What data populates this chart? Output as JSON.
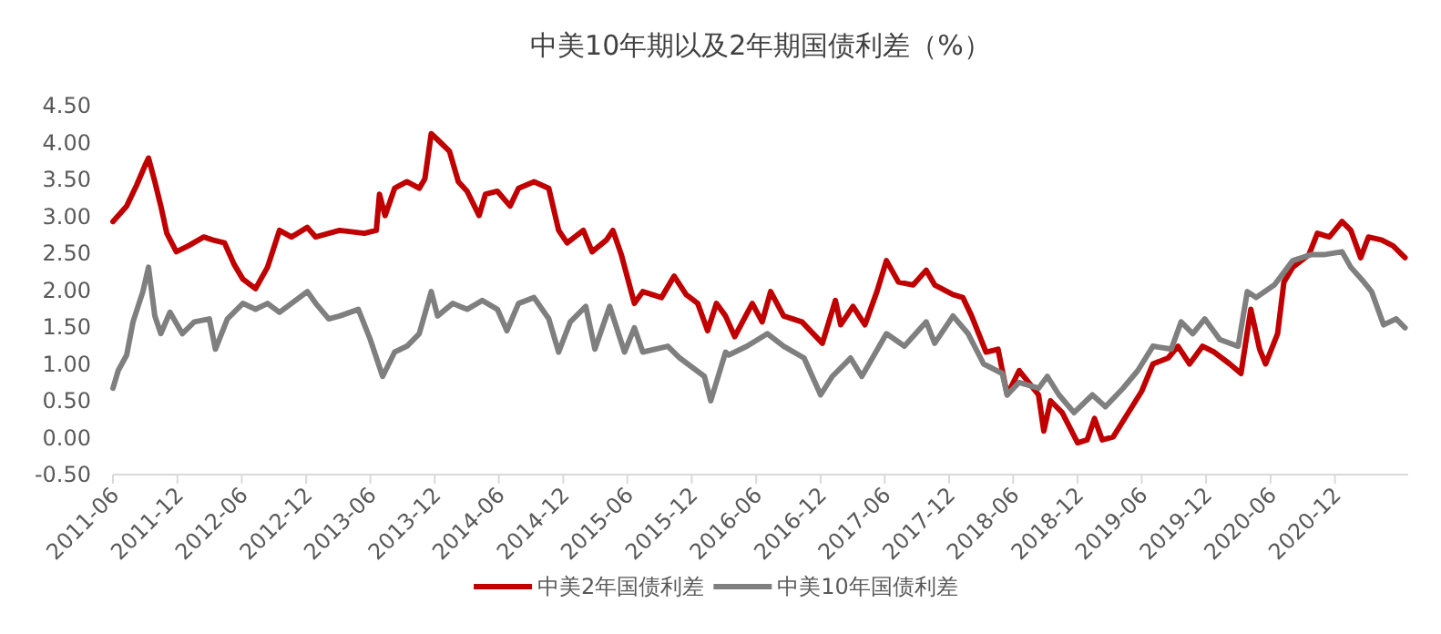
{
  "chart_data": {
    "type": "line",
    "title": "中美10年期以及2年期国债利差（%）",
    "xlim": [
      "2011-06",
      "2021-06-27"
    ],
    "xticks": [
      "2011-06",
      "2011-12",
      "2012-06",
      "2012-12",
      "2013-06",
      "2013-12",
      "2014-06",
      "2014-12",
      "2015-06",
      "2015-12",
      "2016-06",
      "2016-12",
      "2017-06",
      "2017-12",
      "2018-06",
      "2018-12",
      "2019-06",
      "2019-12",
      "2020-06",
      "2020-12"
    ],
    "ylim": [
      -0.5,
      4.5
    ],
    "yticks": [
      {
        "value": -0.5,
        "label": "-0.50"
      },
      {
        "value": 0,
        "label": "0.00"
      },
      {
        "value": 0.5,
        "label": "0.50"
      },
      {
        "value": 1,
        "label": "1.00"
      },
      {
        "value": 1.5,
        "label": "1.50"
      },
      {
        "value": 2,
        "label": "2.00"
      },
      {
        "value": 2.5,
        "label": "2.50"
      },
      {
        "value": 3,
        "label": "3.00"
      },
      {
        "value": 3.5,
        "label": "3.50"
      },
      {
        "value": 4,
        "label": "4.00"
      },
      {
        "value": 4.5,
        "label": "4.50"
      }
    ],
    "legend": "bottom",
    "series": [
      {
        "name": "中美2年国债利差",
        "color": "#c00000",
        "x": [
          "2011-06-01",
          "2011-07-10",
          "2011-08-07",
          "2011-09-02",
          "2011-09-10",
          "2011-09-28",
          "2011-10-15",
          "2011-11-01",
          "2011-11-28",
          "2012-01-01",
          "2012-02-14",
          "2012-03-10",
          "2012-04-13",
          "2012-05-10",
          "2012-06-04",
          "2012-07-10",
          "2012-08-13",
          "2012-09-16",
          "2012-10-20",
          "2012-12-04",
          "2012-12-28",
          "2013-02-03",
          "2013-03-06",
          "2013-05-15",
          "2013-06-18",
          "2013-06-27",
          "2013-07-13",
          "2013-08-09",
          "2013-09-13",
          "2013-10-18",
          "2013-11-03",
          "2013-11-21",
          "2013-12-09",
          "2014-01-12",
          "2014-02-06",
          "2014-03-03",
          "2014-04-06",
          "2014-04-24",
          "2014-05-28",
          "2014-07-03",
          "2014-07-27",
          "2014-09-09",
          "2014-10-21",
          "2014-11-18",
          "2014-12-12",
          "2015-01-27",
          "2015-02-21",
          "2015-04-03",
          "2015-04-21",
          "2015-05-15",
          "2015-06-21",
          "2015-07-15",
          "2015-09-06",
          "2015-10-12",
          "2015-11-15",
          "2015-12-18",
          "2016-01-15",
          "2016-02-09",
          "2016-03-06",
          "2016-04-01",
          "2016-05-21",
          "2016-06-18",
          "2016-07-12",
          "2016-08-18",
          "2016-10-09",
          "2016-12-06",
          "2017-01-12",
          "2017-01-27",
          "2017-03-03",
          "2017-04-06",
          "2017-05-10",
          "2017-06-06",
          "2017-07-10",
          "2017-08-21",
          "2017-09-27",
          "2017-10-21",
          "2017-12-12",
          "2018-01-09",
          "2018-02-03",
          "2018-03-16",
          "2018-04-19",
          "2018-05-15",
          "2018-06-18",
          "2018-07-15",
          "2018-08-12",
          "2018-08-27",
          "2018-09-15",
          "2018-10-18",
          "2018-12-01",
          "2018-12-28",
          "2019-01-18",
          "2019-02-09",
          "2019-03-12",
          "2019-04-24",
          "2019-06-01",
          "2019-07-03",
          "2019-08-15",
          "2019-09-12",
          "2019-10-15",
          "2019-11-21",
          "2019-12-24",
          "2020-02-06",
          "2020-03-09",
          "2020-04-06",
          "2020-05-01",
          "2020-05-18",
          "2020-06-21",
          "2020-07-09",
          "2020-08-03",
          "2020-09-18",
          "2020-10-12",
          "2020-11-15",
          "2020-12-21",
          "2021-01-15",
          "2021-02-12",
          "2021-03-06",
          "2021-04-12",
          "2021-05-15",
          "2021-06-18"
        ],
        "values": [
          2.93,
          3.14,
          3.42,
          3.71,
          3.79,
          3.47,
          3.14,
          2.77,
          2.52,
          2.6,
          2.72,
          2.68,
          2.64,
          2.35,
          2.15,
          2.02,
          2.31,
          2.81,
          2.72,
          2.85,
          2.72,
          2.77,
          2.81,
          2.77,
          2.81,
          3.3,
          3.01,
          3.38,
          3.47,
          3.38,
          3.51,
          4.12,
          4.04,
          3.88,
          3.47,
          3.34,
          3.01,
          3.3,
          3.34,
          3.14,
          3.38,
          3.47,
          3.38,
          2.81,
          2.64,
          2.81,
          2.52,
          2.68,
          2.81,
          2.48,
          1.82,
          1.98,
          1.9,
          2.19,
          1.94,
          1.82,
          1.45,
          1.82,
          1.65,
          1.37,
          1.82,
          1.57,
          1.98,
          1.65,
          1.57,
          1.28,
          1.86,
          1.53,
          1.78,
          1.53,
          1.98,
          2.4,
          2.11,
          2.07,
          2.27,
          2.07,
          1.94,
          1.9,
          1.65,
          1.16,
          1.2,
          0.58,
          0.91,
          0.75,
          0.58,
          0.09,
          0.5,
          0.34,
          -0.07,
          -0.03,
          0.26,
          -0.03,
          0.01,
          0.34,
          0.63,
          1.0,
          1.08,
          1.24,
          1.0,
          1.24,
          1.16,
          1.0,
          0.87,
          1.74,
          1.2,
          1.0,
          1.41,
          2.11,
          2.31,
          2.48,
          2.77,
          2.72,
          2.93,
          2.81,
          2.44,
          2.72,
          2.68,
          2.6,
          2.44
        ]
      },
      {
        "name": "中美10年国债利差",
        "color": "#7f7f7f",
        "x": [
          "2011-06-01",
          "2011-06-16",
          "2011-07-10",
          "2011-07-28",
          "2011-08-25",
          "2011-09-10",
          "2011-09-28",
          "2011-10-15",
          "2011-11-10",
          "2011-12-15",
          "2012-01-18",
          "2012-03-01",
          "2012-03-18",
          "2012-04-21",
          "2012-06-04",
          "2012-07-10",
          "2012-08-13",
          "2012-09-16",
          "2012-10-20",
          "2012-12-04",
          "2012-12-28",
          "2013-02-03",
          "2013-03-06",
          "2013-04-28",
          "2013-06-01",
          "2013-07-06",
          "2013-08-09",
          "2013-09-13",
          "2013-10-18",
          "2013-11-21",
          "2013-12-09",
          "2014-01-21",
          "2014-03-03",
          "2014-04-15",
          "2014-05-28",
          "2014-06-24",
          "2014-07-27",
          "2014-09-09",
          "2014-10-21",
          "2014-11-18",
          "2014-12-21",
          "2015-02-03",
          "2015-03-01",
          "2015-04-12",
          "2015-05-24",
          "2015-06-21",
          "2015-07-15",
          "2015-09-24",
          "2015-10-28",
          "2016-01-06",
          "2016-01-24",
          "2016-03-06",
          "2016-03-15",
          "2016-05-06",
          "2016-07-03",
          "2016-08-18",
          "2016-10-15",
          "2016-12-01",
          "2017-01-03",
          "2017-02-24",
          "2017-03-28",
          "2017-06-06",
          "2017-07-27",
          "2017-09-27",
          "2017-10-21",
          "2017-12-12",
          "2018-01-24",
          "2018-03-09",
          "2018-05-01",
          "2018-05-15",
          "2018-06-18",
          "2018-08-12",
          "2018-09-06",
          "2018-10-09",
          "2018-11-21",
          "2019-01-12",
          "2019-02-18",
          "2019-04-09",
          "2019-05-21",
          "2019-07-03",
          "2019-08-24",
          "2019-09-21",
          "2019-10-24",
          "2019-11-27",
          "2020-01-09",
          "2020-03-01",
          "2020-03-27",
          "2020-04-21",
          "2020-06-12",
          "2020-08-03",
          "2020-09-24",
          "2020-10-30",
          "2020-12-21",
          "2021-01-15",
          "2021-02-21",
          "2021-03-15",
          "2021-04-18",
          "2021-05-24",
          "2021-06-18"
        ],
        "values": [
          0.67,
          0.91,
          1.12,
          1.57,
          1.98,
          2.31,
          1.65,
          1.41,
          1.7,
          1.41,
          1.57,
          1.61,
          1.2,
          1.61,
          1.82,
          1.74,
          1.82,
          1.7,
          1.82,
          1.98,
          1.82,
          1.61,
          1.65,
          1.74,
          1.33,
          0.83,
          1.16,
          1.24,
          1.41,
          1.98,
          1.65,
          1.82,
          1.74,
          1.86,
          1.74,
          1.45,
          1.82,
          1.9,
          1.61,
          1.16,
          1.57,
          1.78,
          1.2,
          1.78,
          1.16,
          1.49,
          1.16,
          1.24,
          1.08,
          0.83,
          0.5,
          1.16,
          1.12,
          1.24,
          1.41,
          1.24,
          1.08,
          0.58,
          0.83,
          1.08,
          0.83,
          1.41,
          1.24,
          1.57,
          1.28,
          1.65,
          1.41,
          1.0,
          0.87,
          0.58,
          0.75,
          0.67,
          0.83,
          0.58,
          0.34,
          0.58,
          0.42,
          0.67,
          0.91,
          1.24,
          1.2,
          1.57,
          1.41,
          1.61,
          1.33,
          1.24,
          1.98,
          1.9,
          2.07,
          2.4,
          2.48,
          2.48,
          2.52,
          2.31,
          2.11,
          1.98,
          1.53,
          1.61,
          1.49
        ]
      }
    ]
  }
}
